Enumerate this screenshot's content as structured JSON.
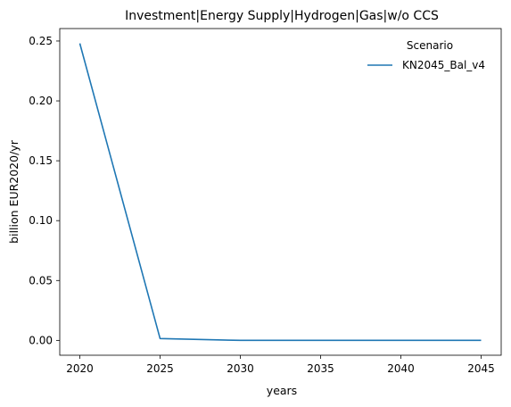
{
  "chart_data": {
    "type": "line",
    "title": "Investment|Energy Supply|Hydrogen|Gas|w/o CCS",
    "xlabel": "years",
    "ylabel": "billion EUR2020/yr",
    "x": [
      2020,
      2025,
      2030,
      2035,
      2040,
      2045
    ],
    "series": [
      {
        "name": "KN2045_Bal_v4",
        "color": "#1f77b4",
        "values": [
          0.248,
          0.0015,
          0.0,
          0.0,
          0.0,
          0.0
        ]
      }
    ],
    "xlim": [
      2018.75,
      2046.25
    ],
    "ylim": [
      -0.0124,
      0.2604
    ],
    "xticks": [
      2020,
      2025,
      2030,
      2035,
      2040,
      2045
    ],
    "yticks": [
      0.0,
      0.05,
      0.1,
      0.15,
      0.2,
      0.25
    ],
    "ytick_labels": [
      "0.00",
      "0.05",
      "0.10",
      "0.15",
      "0.20",
      "0.25"
    ],
    "grid": false,
    "legend": {
      "title": "Scenario",
      "placement": "top-right"
    }
  }
}
